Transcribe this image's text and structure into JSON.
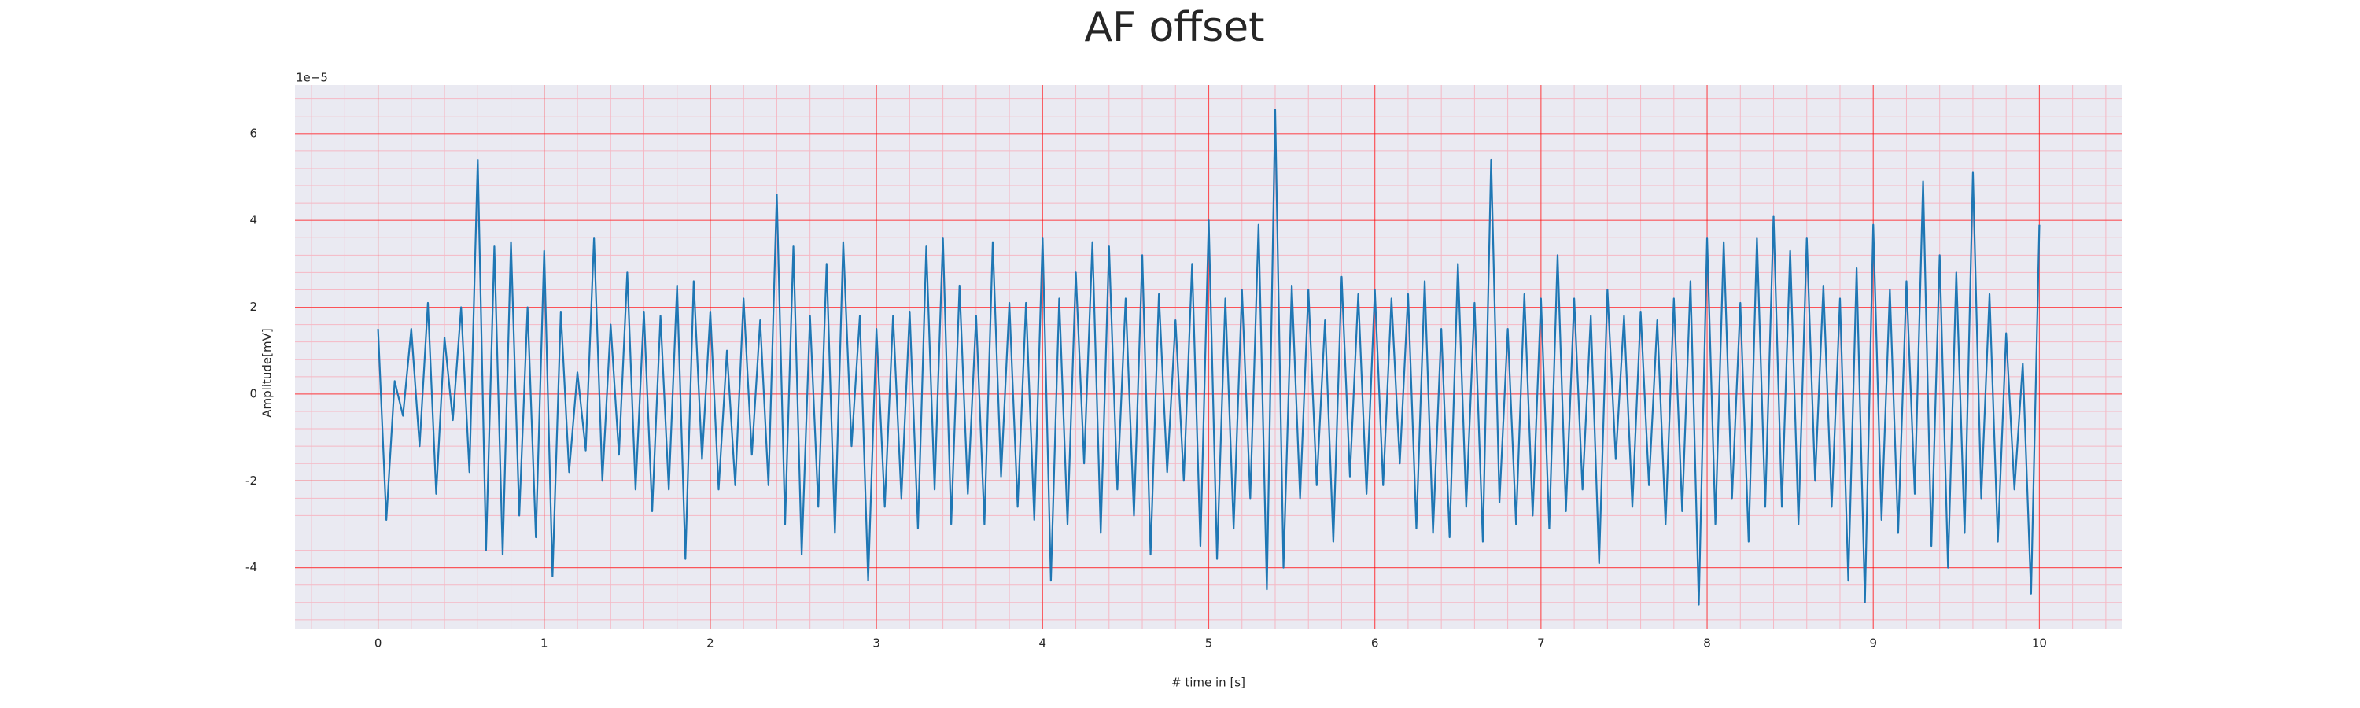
{
  "chart_data": {
    "type": "line",
    "title": "AF offset",
    "xlabel": "# time in [s]",
    "ylabel": "Amplitude[mV]",
    "y_offset_label": "1e−5",
    "color": "#1f77b4",
    "background": "#eaeaf2",
    "grid": true,
    "grid_color": "#ff0000",
    "minor_grid": true,
    "minor_divisions": 5,
    "minor_grid_color": "#f5b8c4",
    "xlim": [
      -0.5,
      10.5
    ],
    "xticks": [
      0,
      1,
      2,
      3,
      4,
      5,
      6,
      7,
      8,
      9,
      10
    ],
    "ylim": [
      -5.42,
      7.12
    ],
    "yticks": [
      -4,
      -2,
      0,
      2,
      4,
      6
    ],
    "x": [
      0,
      0.05,
      0.1,
      0.15,
      0.2,
      0.25,
      0.3,
      0.35,
      0.4,
      0.45,
      0.5,
      0.55,
      0.6,
      0.65,
      0.7,
      0.75,
      0.8,
      0.85,
      0.9,
      0.95,
      1,
      1.05,
      1.1,
      1.15,
      1.2,
      1.25,
      1.3,
      1.35,
      1.4,
      1.45,
      1.5,
      1.55,
      1.6,
      1.65,
      1.7,
      1.75,
      1.8,
      1.85,
      1.9,
      1.95,
      2,
      2.05,
      2.1,
      2.15,
      2.2,
      2.25,
      2.3,
      2.35,
      2.4,
      2.45,
      2.5,
      2.55,
      2.6,
      2.65,
      2.7,
      2.75,
      2.8,
      2.85,
      2.9,
      2.95,
      3,
      3.05,
      3.1,
      3.15,
      3.2,
      3.25,
      3.3,
      3.35,
      3.4,
      3.45,
      3.5,
      3.55,
      3.6,
      3.65,
      3.7,
      3.75,
      3.8,
      3.85,
      3.9,
      3.95,
      4,
      4.05,
      4.1,
      4.15,
      4.2,
      4.25,
      4.3,
      4.35,
      4.4,
      4.45,
      4.5,
      4.55,
      4.6,
      4.65,
      4.7,
      4.75,
      4.8,
      4.85,
      4.9,
      4.95,
      5,
      5.05,
      5.1,
      5.15,
      5.2,
      5.25,
      5.3,
      5.35,
      5.4,
      5.45,
      5.5,
      5.55,
      5.6,
      5.65,
      5.7,
      5.75,
      5.8,
      5.85,
      5.9,
      5.95,
      6,
      6.05,
      6.1,
      6.15,
      6.2,
      6.25,
      6.3,
      6.35,
      6.4,
      6.45,
      6.5,
      6.55,
      6.6,
      6.65,
      6.7,
      6.75,
      6.8,
      6.85,
      6.9,
      6.95,
      7,
      7.05,
      7.1,
      7.15,
      7.2,
      7.25,
      7.3,
      7.35,
      7.4,
      7.45,
      7.5,
      7.55,
      7.6,
      7.65,
      7.7,
      7.75,
      7.8,
      7.85,
      7.9,
      7.95,
      8,
      8.05,
      8.1,
      8.15,
      8.2,
      8.25,
      8.3,
      8.35,
      8.4,
      8.45,
      8.5,
      8.55,
      8.6,
      8.65,
      8.7,
      8.75,
      8.8,
      8.85,
      8.9,
      8.95,
      9,
      9.05,
      9.1,
      9.15,
      9.2,
      9.25,
      9.3,
      9.35,
      9.4,
      9.45,
      9.5,
      9.55,
      9.6,
      9.65,
      9.7,
      9.75,
      9.8,
      9.85,
      9.9,
      9.95,
      10
    ],
    "values": [
      1.5,
      -2.9,
      0.3,
      -0.5,
      1.5,
      -1.2,
      2.1,
      -2.3,
      1.3,
      -0.6,
      2.0,
      -1.8,
      5.4,
      -3.6,
      3.4,
      -3.7,
      3.5,
      -2.8,
      2.0,
      -3.3,
      3.3,
      -4.2,
      1.9,
      -1.8,
      0.5,
      -1.3,
      3.6,
      -2.0,
      1.6,
      -1.4,
      2.8,
      -2.2,
      1.9,
      -2.7,
      1.8,
      -2.2,
      2.5,
      -3.8,
      2.6,
      -1.5,
      1.9,
      -2.2,
      1.0,
      -2.1,
      2.2,
      -1.4,
      1.7,
      -2.1,
      4.6,
      -3.0,
      3.4,
      -3.7,
      1.8,
      -2.6,
      3.0,
      -3.2,
      3.5,
      -1.2,
      1.8,
      -4.3,
      1.5,
      -2.6,
      1.8,
      -2.4,
      1.9,
      -3.1,
      3.4,
      -2.2,
      3.6,
      -3.0,
      2.5,
      -2.3,
      1.8,
      -3.0,
      3.5,
      -1.9,
      2.1,
      -2.6,
      2.1,
      -2.9,
      3.6,
      -4.3,
      2.2,
      -3.0,
      2.8,
      -1.6,
      3.5,
      -3.2,
      3.4,
      -2.2,
      2.2,
      -2.8,
      3.2,
      -3.7,
      2.3,
      -1.8,
      1.7,
      -2.0,
      3.0,
      -3.5,
      4.0,
      -3.8,
      2.2,
      -3.1,
      2.4,
      -2.4,
      3.9,
      -4.5,
      6.55,
      -4.0,
      2.5,
      -2.4,
      2.4,
      -2.1,
      1.7,
      -3.4,
      2.7,
      -1.9,
      2.3,
      -2.3,
      2.4,
      -2.1,
      2.2,
      -1.6,
      2.3,
      -3.1,
      2.6,
      -3.2,
      1.5,
      -3.3,
      3.0,
      -2.6,
      2.1,
      -3.4,
      5.4,
      -2.5,
      1.5,
      -3.0,
      2.3,
      -2.8,
      2.2,
      -3.1,
      3.2,
      -2.7,
      2.2,
      -2.2,
      1.8,
      -3.9,
      2.4,
      -1.5,
      1.8,
      -2.6,
      1.9,
      -2.1,
      1.7,
      -3.0,
      2.2,
      -2.7,
      2.6,
      -4.85,
      3.6,
      -3.0,
      3.5,
      -2.4,
      2.1,
      -3.4,
      3.6,
      -2.6,
      4.1,
      -2.6,
      3.3,
      -3.0,
      3.6,
      -2.0,
      2.5,
      -2.6,
      2.2,
      -4.3,
      2.9,
      -4.8,
      3.9,
      -2.9,
      2.4,
      -3.2,
      2.6,
      -2.3,
      4.9,
      -3.5,
      3.2,
      -4.0,
      2.8,
      -3.2,
      5.1,
      -2.4,
      2.3,
      -3.4,
      1.4,
      -2.2,
      0.7,
      -4.6,
      3.9
    ]
  }
}
